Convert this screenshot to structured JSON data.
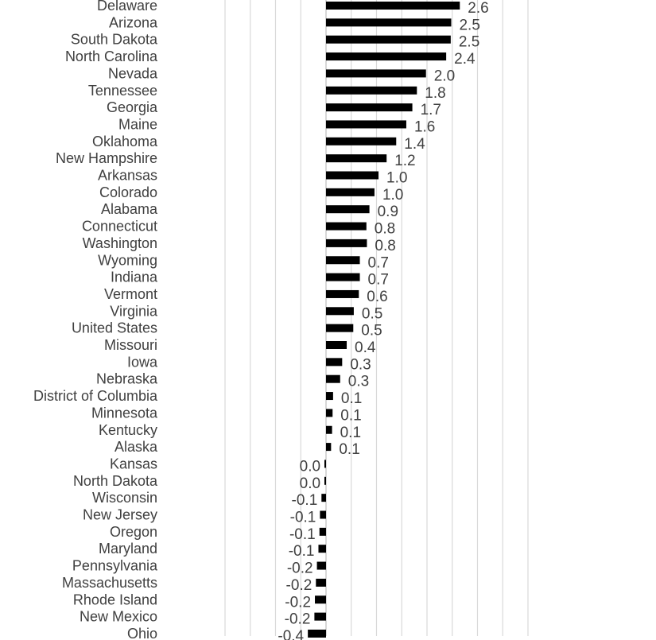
{
  "chart_data": {
    "type": "bar",
    "orientation": "horizontal",
    "categories": [
      "Delaware",
      "Arizona",
      "South Dakota",
      "North Carolina",
      "Nevada",
      "Tennessee",
      "Georgia",
      "Maine",
      "Oklahoma",
      "New Hampshire",
      "Arkansas",
      "Colorado",
      "Alabama",
      "Connecticut",
      "Washington",
      "Wyoming",
      "Indiana",
      "Vermont",
      "Virginia",
      "United States",
      "Missouri",
      "Iowa",
      "Nebraska",
      "District of Columbia",
      "Minnesota",
      "Kentucky",
      "Alaska",
      "Kansas",
      "North Dakota",
      "Wisconsin",
      "New Jersey",
      "Oregon",
      "Maryland",
      "Pennsylvania",
      "Massachusetts",
      "Rhode Island",
      "New Mexico",
      "Ohio"
    ],
    "values": [
      2.65,
      2.48,
      2.47,
      2.38,
      1.98,
      1.8,
      1.71,
      1.59,
      1.39,
      1.2,
      1.04,
      0.96,
      0.86,
      0.8,
      0.81,
      0.67,
      0.67,
      0.65,
      0.55,
      0.54,
      0.41,
      0.32,
      0.28,
      0.14,
      0.13,
      0.12,
      0.1,
      -0.03,
      -0.03,
      -0.09,
      -0.12,
      -0.13,
      -0.15,
      -0.18,
      -0.2,
      -0.22,
      -0.23,
      -0.36
    ],
    "value_labels": [
      "2.6",
      "2.5",
      "2.5",
      "2.4",
      "2.0",
      "1.8",
      "1.7",
      "1.6",
      "1.4",
      "1.2",
      "1.0",
      "1.0",
      "0.9",
      "0.8",
      "0.8",
      "0.7",
      "0.7",
      "0.6",
      "0.5",
      "0.5",
      "0.4",
      "0.3",
      "0.3",
      "0.1",
      "0.1",
      "0.1",
      "0.1",
      "0.0",
      "0.0",
      "-0.1",
      "-0.1",
      "-0.1",
      "-0.1",
      "-0.2",
      "-0.2",
      "-0.2",
      "-0.2",
      "-0.4"
    ],
    "bar_color": "#000000",
    "gridlines": true,
    "legend": false,
    "x_range": [
      -2,
      4
    ],
    "x_gridline_step": 0.5
  }
}
